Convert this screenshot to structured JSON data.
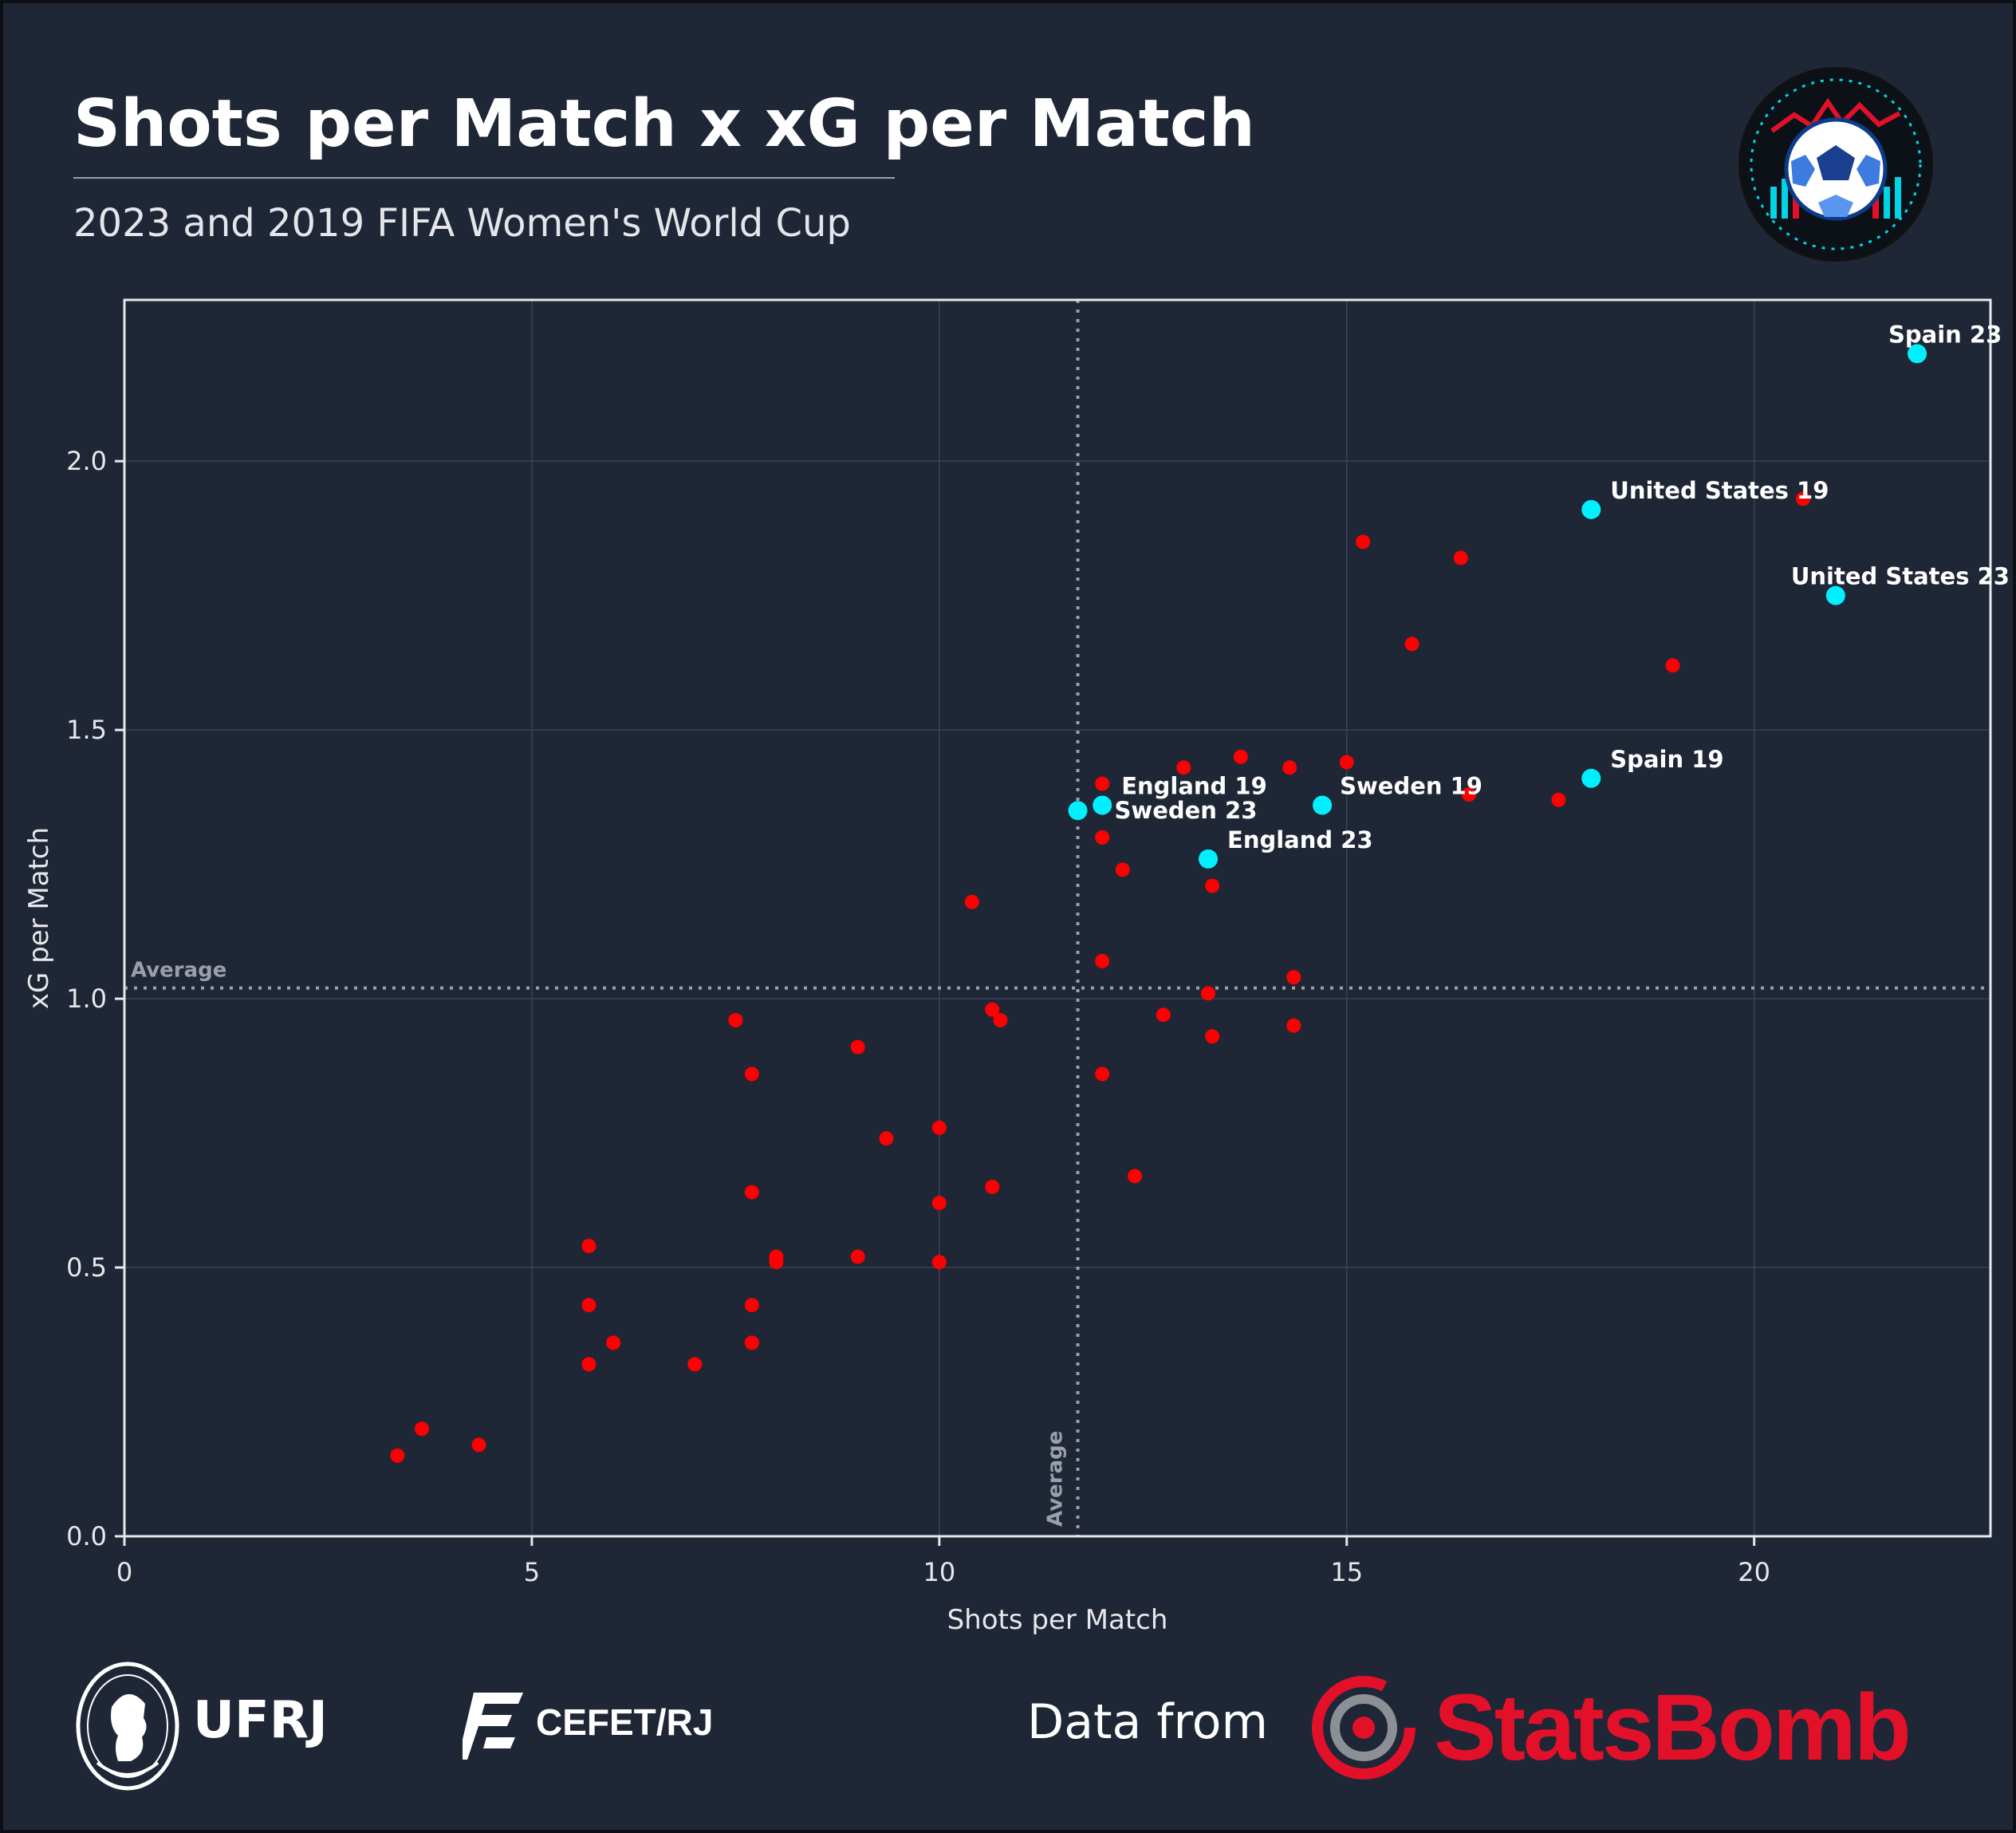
{
  "title": "Shots per Match x xG per Match",
  "subtitle": "2023 and 2019 FIFA Women's World Cup",
  "footer": {
    "ufrj": "UFRJ",
    "cefet": "CEFET/RJ",
    "data_from": "Data from",
    "statsbomb": "StatsBomb"
  },
  "icons": {
    "badge": "soccer-ball-badge-icon",
    "ufrj_logo": "ufrj-seal-icon",
    "cefet_logo": "cefet-logo-icon",
    "statsbomb_logo": "statsbomb-target-icon"
  },
  "colors": {
    "background": "#1f2636",
    "other_teams": "#ff0000",
    "highlighted": "#00f0ff",
    "average_line": "#9aa0aa",
    "brand_red": "#e3102a"
  },
  "chart_data": {
    "type": "scatter",
    "title": "Shots per Match x xG per Match",
    "subtitle": "2023 and 2019 FIFA Women's World Cup",
    "xlabel": "Shots per Match",
    "ylabel": "xG per Match",
    "xlim": [
      0,
      22.9
    ],
    "ylim": [
      0,
      2.3
    ],
    "xticks": [
      0,
      5,
      10,
      15,
      20
    ],
    "yticks": [
      0.0,
      0.5,
      1.0,
      1.5,
      2.0
    ],
    "xtick_labels": [
      "0",
      "5",
      "10",
      "15",
      "20"
    ],
    "ytick_labels": [
      "0.0",
      "0.5",
      "1.0",
      "1.5",
      "2.0"
    ],
    "grid": true,
    "averages": {
      "x": 11.7,
      "y": 1.02,
      "label": "Average"
    },
    "highlighted": [
      {
        "label": "Spain 23",
        "x": 22.0,
        "y": 2.2
      },
      {
        "label": "United States 19",
        "x": 18.0,
        "y": 1.91
      },
      {
        "label": "United States 23",
        "x": 21.0,
        "y": 1.75
      },
      {
        "label": "Spain 19",
        "x": 18.0,
        "y": 1.41
      },
      {
        "label": "Sweden 19",
        "x": 14.7,
        "y": 1.36
      },
      {
        "label": "England 19",
        "x": 12.0,
        "y": 1.36
      },
      {
        "label": "Sweden 23",
        "x": 11.7,
        "y": 1.35
      },
      {
        "label": "England 23",
        "x": 13.3,
        "y": 1.26
      }
    ],
    "others": [
      {
        "x": 20.6,
        "y": 1.93
      },
      {
        "x": 15.2,
        "y": 1.85
      },
      {
        "x": 16.4,
        "y": 1.82
      },
      {
        "x": 15.8,
        "y": 1.66
      },
      {
        "x": 19.0,
        "y": 1.62
      },
      {
        "x": 13.7,
        "y": 1.45
      },
      {
        "x": 13.0,
        "y": 1.43
      },
      {
        "x": 15.0,
        "y": 1.44
      },
      {
        "x": 14.3,
        "y": 1.43
      },
      {
        "x": 12.0,
        "y": 1.4
      },
      {
        "x": 16.5,
        "y": 1.38
      },
      {
        "x": 17.6,
        "y": 1.37
      },
      {
        "x": 12.0,
        "y": 1.3
      },
      {
        "x": 12.25,
        "y": 1.24
      },
      {
        "x": 13.35,
        "y": 1.21
      },
      {
        "x": 10.4,
        "y": 1.18
      },
      {
        "x": 12.0,
        "y": 1.07
      },
      {
        "x": 14.35,
        "y": 1.04
      },
      {
        "x": 13.3,
        "y": 1.01
      },
      {
        "x": 10.65,
        "y": 0.98
      },
      {
        "x": 10.75,
        "y": 0.96
      },
      {
        "x": 12.75,
        "y": 0.97
      },
      {
        "x": 7.5,
        "y": 0.96
      },
      {
        "x": 14.35,
        "y": 0.95
      },
      {
        "x": 13.35,
        "y": 0.93
      },
      {
        "x": 9.0,
        "y": 0.91
      },
      {
        "x": 7.7,
        "y": 0.86
      },
      {
        "x": 12.0,
        "y": 0.86
      },
      {
        "x": 10.0,
        "y": 0.76
      },
      {
        "x": 9.35,
        "y": 0.74
      },
      {
        "x": 12.4,
        "y": 0.67
      },
      {
        "x": 10.65,
        "y": 0.65
      },
      {
        "x": 7.7,
        "y": 0.64
      },
      {
        "x": 10.0,
        "y": 0.62
      },
      {
        "x": 5.7,
        "y": 0.54
      },
      {
        "x": 8.0,
        "y": 0.52
      },
      {
        "x": 9.0,
        "y": 0.52
      },
      {
        "x": 8.0,
        "y": 0.51
      },
      {
        "x": 10.0,
        "y": 0.51
      },
      {
        "x": 7.7,
        "y": 0.43
      },
      {
        "x": 5.7,
        "y": 0.43
      },
      {
        "x": 6.0,
        "y": 0.36
      },
      {
        "x": 7.7,
        "y": 0.36
      },
      {
        "x": 5.7,
        "y": 0.32
      },
      {
        "x": 7.0,
        "y": 0.32
      },
      {
        "x": 3.65,
        "y": 0.2
      },
      {
        "x": 4.35,
        "y": 0.17
      },
      {
        "x": 3.35,
        "y": 0.15
      }
    ]
  }
}
